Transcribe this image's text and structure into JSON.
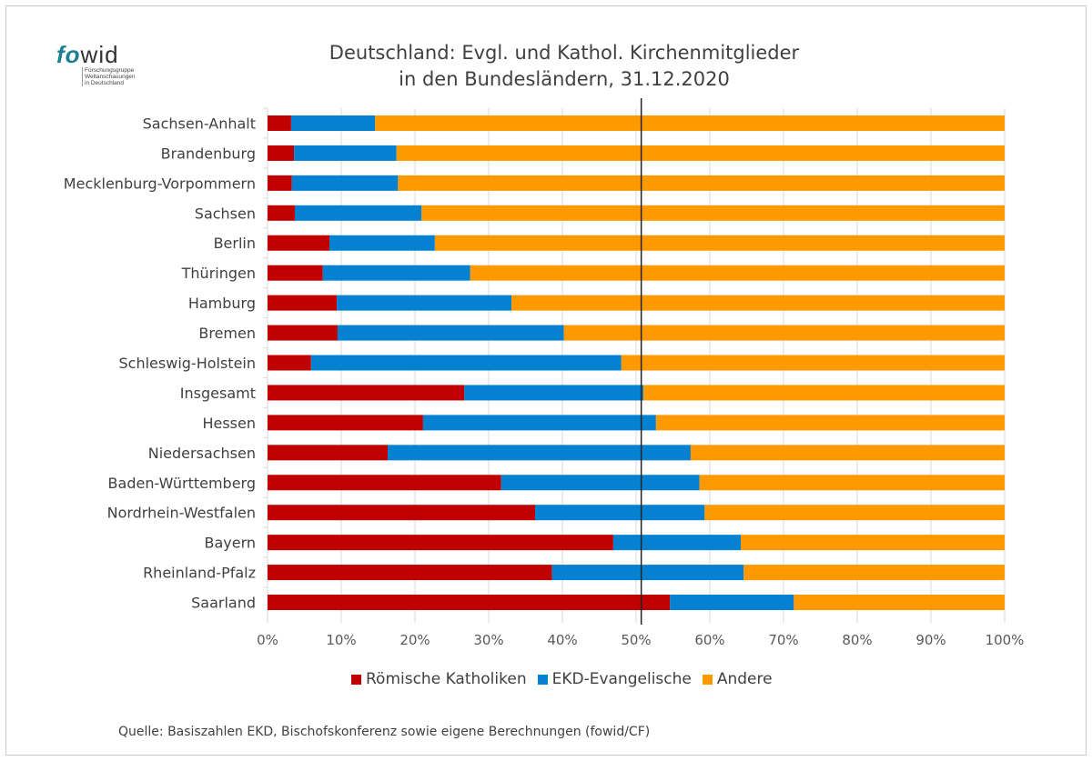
{
  "logo": {
    "brand_a": "fo",
    "brand_b": "wid",
    "lines": [
      "Forschungsgruppe",
      "Weltanschauungen",
      "in Deutschland"
    ]
  },
  "source": "Quelle: Basiszahlen EKD, Bischofskonferenz sowie eigene Berechnungen (fowid/CF)",
  "chart_data": {
    "type": "bar",
    "orientation": "horizontal",
    "stacked": "percent",
    "title": "Deutschland: Evgl. und Kathol. Kirchenmitglieder\nin den Bundesländern, 31.12.2020",
    "title_lines": [
      "Deutschland: Evgl. und Kathol. Kirchenmitglieder",
      "in den Bundesländern, 31.12.2020"
    ],
    "xlabel": "",
    "ylabel": "",
    "xlim": [
      0,
      100
    ],
    "x_ticks": [
      "0%",
      "10%",
      "20%",
      "30%",
      "40%",
      "50%",
      "60%",
      "70%",
      "80%",
      "90%",
      "100%"
    ],
    "grid": true,
    "reference_line": 50.7,
    "legend_position": "bottom",
    "categories": [
      "Sachsen-Anhalt",
      "Brandenburg",
      "Mecklenburg-Vorpommern",
      "Sachsen",
      "Berlin",
      "Thüringen",
      "Hamburg",
      "Bremen",
      "Schleswig-Holstein",
      "Insgesamt",
      "Hessen",
      "Niedersachsen",
      "Baden-Württemberg",
      "Nordrhein-Westfalen",
      "Bayern",
      "Rheinland-Pfalz",
      "Saarland"
    ],
    "series": [
      {
        "name": "Römische Katholiken",
        "color": "#c00000",
        "values": [
          3.2,
          3.6,
          3.3,
          3.7,
          8.4,
          7.5,
          9.4,
          9.5,
          5.9,
          26.7,
          21.1,
          16.3,
          31.7,
          36.3,
          46.9,
          38.6,
          54.6
        ]
      },
      {
        "name": "EKD-Evangelische",
        "color": "#0481d1",
        "values": [
          11.4,
          13.9,
          14.4,
          17.2,
          14.3,
          20.0,
          23.7,
          30.7,
          42.1,
          24.3,
          31.6,
          41.1,
          26.9,
          23.0,
          17.3,
          26.0,
          16.8
        ]
      },
      {
        "name": "Andere",
        "color": "#ff9900",
        "values": [
          85.4,
          82.5,
          82.3,
          79.1,
          77.3,
          72.5,
          66.9,
          59.8,
          52.0,
          49.0,
          47.3,
          42.6,
          41.4,
          40.7,
          35.8,
          35.4,
          28.6
        ]
      }
    ]
  }
}
